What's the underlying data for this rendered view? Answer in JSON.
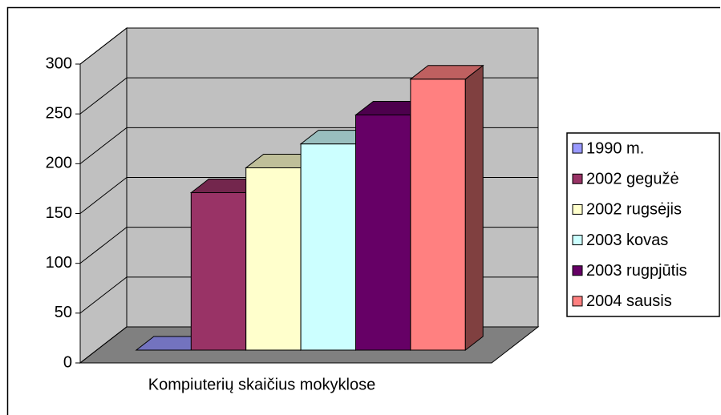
{
  "chart_data": {
    "type": "bar3d",
    "categories": [
      "Kompiuterių skaičius mokyklose"
    ],
    "series": [
      {
        "name": "1990 m.",
        "color": "#9999ff",
        "values": [
          0
        ]
      },
      {
        "name": "2002 gegužė",
        "color": "#993366",
        "values": [
          158
        ]
      },
      {
        "name": "2002 rugsėjis",
        "color": "#ffffcc",
        "values": [
          183
        ]
      },
      {
        "name": "2003 kovas",
        "color": "#ccffff",
        "values": [
          207
        ]
      },
      {
        "name": "2003 rugpjūtis",
        "color": "#660066",
        "values": [
          236
        ]
      },
      {
        "name": "2004 sausis",
        "color": "#ff8080",
        "values": [
          272
        ]
      }
    ],
    "ylim": [
      0,
      300
    ],
    "yticks": [
      0,
      50,
      100,
      150,
      200,
      250,
      300
    ],
    "grid": true,
    "legend": "right"
  }
}
